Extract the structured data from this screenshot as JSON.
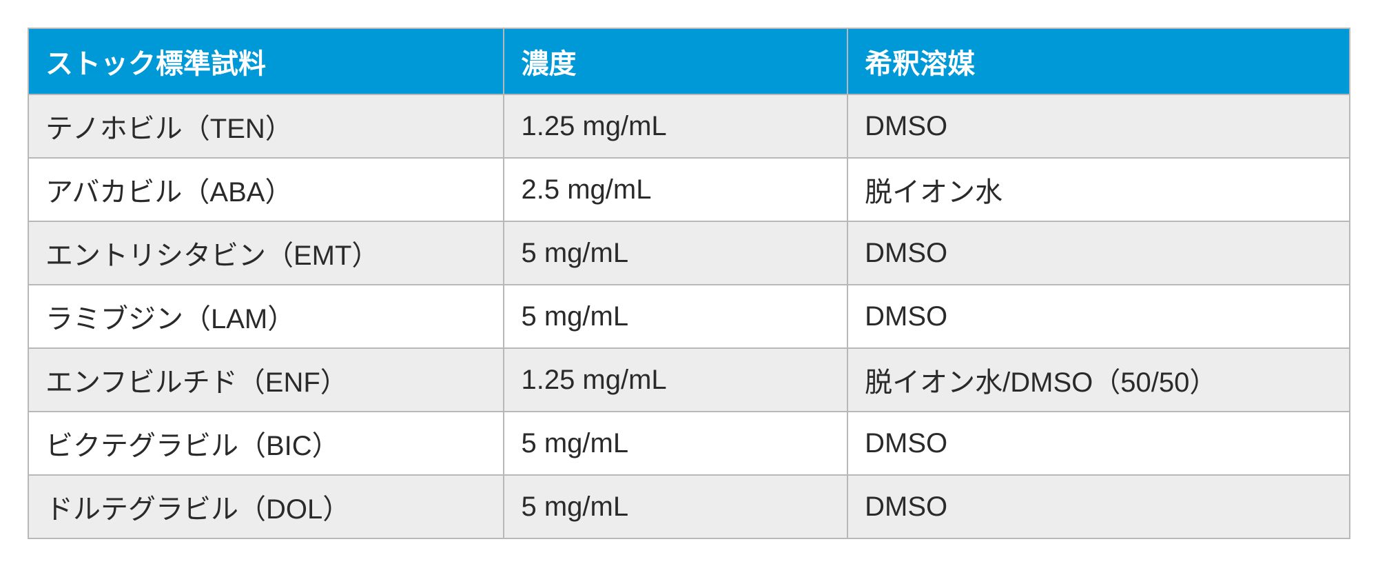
{
  "table": {
    "type": "table",
    "columns": [
      {
        "label": "ストック標準試料",
        "width_pct": 36,
        "align": "left"
      },
      {
        "label": "濃度",
        "width_pct": 26,
        "align": "left"
      },
      {
        "label": "希釈溶媒",
        "width_pct": 38,
        "align": "left"
      }
    ],
    "rows": [
      [
        "テノホビル（TEN）",
        "1.25 mg/mL",
        "DMSO"
      ],
      [
        "アバカビル（ABA）",
        "2.5 mg/mL",
        "脱イオン水"
      ],
      [
        "エントリシタビン（EMT）",
        "5 mg/mL",
        "DMSO"
      ],
      [
        "ラミブジン（LAM）",
        "5 mg/mL",
        "DMSO"
      ],
      [
        "エンフビルチド（ENF）",
        "1.25 mg/mL",
        "脱イオン水/DMSO（50/50）"
      ],
      [
        "ビクテグラビル（BIC）",
        "5 mg/mL",
        "DMSO"
      ],
      [
        "ドルテグラビル（DOL）",
        "5 mg/mL",
        "DMSO"
      ]
    ],
    "header_bg_color": "#0099d8",
    "header_text_color": "#ffffff",
    "header_font_size": 40,
    "header_font_weight": 700,
    "body_font_size": 40,
    "body_font_weight": 400,
    "body_text_color": "#2a2a2a",
    "row_odd_bg_color": "#ededed",
    "row_even_bg_color": "#ffffff",
    "border_color": "#b8b8b8",
    "border_width": 2,
    "background_color": "#ffffff"
  }
}
